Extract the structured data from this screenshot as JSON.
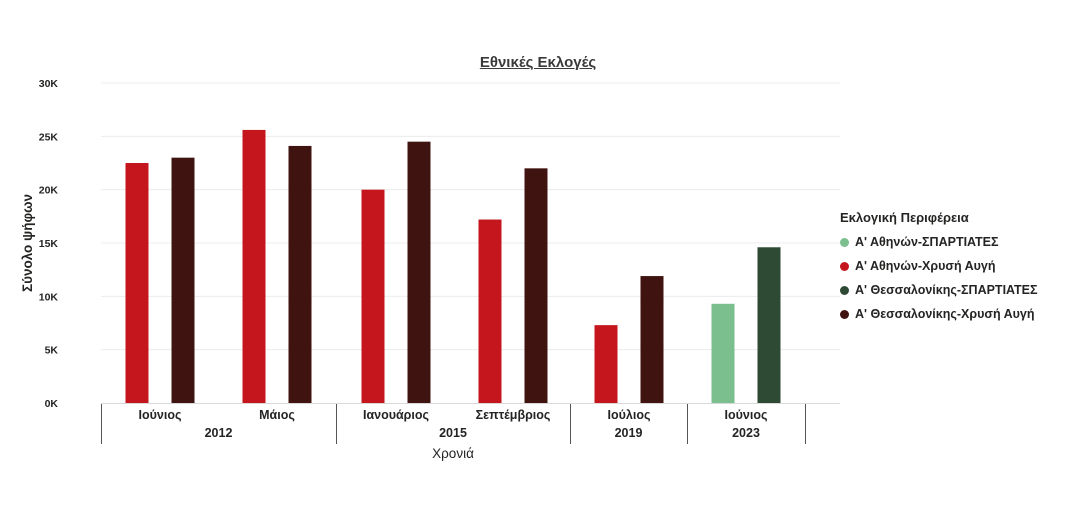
{
  "chart_data": {
    "type": "bar",
    "title": "Εθνικές Εκλογές",
    "xlabel": "Χρονιά",
    "ylabel": "Σύνολο ψήφων",
    "ylim": [
      0,
      30000
    ],
    "yticks": [
      {
        "value": 0,
        "label": "0K"
      },
      {
        "value": 5000,
        "label": "5K"
      },
      {
        "value": 10000,
        "label": "10K"
      },
      {
        "value": 15000,
        "label": "15K"
      },
      {
        "value": 20000,
        "label": "20K"
      },
      {
        "value": 25000,
        "label": "25K"
      },
      {
        "value": 30000,
        "label": "30K"
      }
    ],
    "grid": true,
    "legend_title": "Εκλογική Περιφέρεια",
    "legend_position": "right",
    "series_colors": [
      "#7bbf8f",
      "#c4161c",
      "#2e4a35",
      "#3f1410"
    ],
    "series": [
      {
        "name": "Α' Αθηνών-ΣΠΑΡΤΙΑΤΕΣ",
        "values": [
          null,
          null,
          null,
          null,
          null,
          9300
        ]
      },
      {
        "name": "Α' Αθηνών-Χρυσή Αυγή",
        "values": [
          22500,
          25600,
          20000,
          17200,
          7300,
          null
        ]
      },
      {
        "name": "Α' Θεσσαλονίκης-ΣΠΑΡΤΙΑΤΕΣ",
        "values": [
          null,
          null,
          null,
          null,
          null,
          14600
        ]
      },
      {
        "name": "Α' Θεσσαλονίκης-Χρυσή Αυγή",
        "values": [
          23000,
          24100,
          24500,
          22000,
          11900,
          null
        ]
      }
    ],
    "categories": [
      "Ιούνιος",
      "Μάιος",
      "Ιανουάριος",
      "Σεπτέμβριος",
      "Ιούλιος",
      "Ιούνιος"
    ],
    "groups": [
      {
        "label": "2012",
        "span": 2
      },
      {
        "label": "2015",
        "span": 2
      },
      {
        "label": "2019",
        "span": 1
      },
      {
        "label": "2023",
        "span": 1
      }
    ]
  }
}
